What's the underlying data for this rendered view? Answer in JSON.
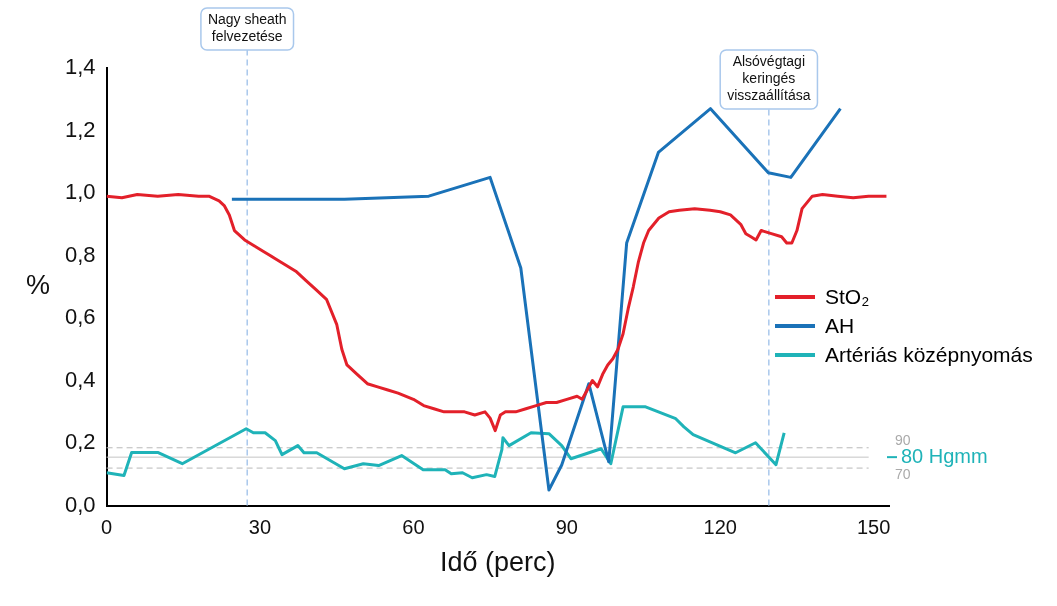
{
  "chart_data": {
    "type": "line",
    "xlabel": "Idő (perc)",
    "ylabel": "%",
    "xlim": [
      0,
      153
    ],
    "xticks": [
      0,
      30,
      60,
      90,
      120,
      150
    ],
    "ylim": [
      0,
      1.4
    ],
    "yticks": [
      {
        "value": 0,
        "label": "0,0"
      },
      {
        "value": 0.2,
        "label": "0,2"
      },
      {
        "value": 0.4,
        "label": "0,4"
      },
      {
        "value": 0.6,
        "label": "0,6"
      },
      {
        "value": 0.8,
        "label": "0,8"
      },
      {
        "value": 1,
        "label": "1,0"
      },
      {
        "value": 1.2,
        "label": "1,2"
      },
      {
        "value": 1.4,
        "label": "1,4"
      }
    ],
    "grid": false,
    "legend": "right",
    "marker": "none",
    "line_style": "solid",
    "series": [
      {
        "name": "StO₂",
        "color": "#e3202a",
        "x": [
          0,
          3,
          6,
          10,
          14,
          18,
          20,
          22,
          23,
          24,
          25,
          27,
          29,
          31,
          33,
          35,
          37,
          39,
          41,
          43,
          45,
          46,
          47,
          49,
          51,
          53,
          55,
          57,
          60,
          62,
          64,
          66,
          68,
          70,
          72,
          74,
          75,
          76,
          77,
          78,
          80,
          82,
          84,
          86,
          88,
          90,
          92,
          93,
          94,
          95,
          96,
          97,
          98,
          99,
          100,
          101,
          102,
          103,
          104,
          105,
          106,
          108,
          110,
          112,
          115,
          118,
          120,
          122,
          124,
          125,
          126,
          127,
          128,
          130,
          132,
          133,
          134,
          135,
          136,
          138,
          140,
          143,
          146,
          149,
          152.5
        ],
        "values": [
          0.99,
          0.985,
          0.995,
          0.99,
          0.995,
          0.99,
          0.99,
          0.975,
          0.96,
          0.93,
          0.88,
          0.85,
          0.83,
          0.81,
          0.79,
          0.77,
          0.75,
          0.72,
          0.69,
          0.66,
          0.58,
          0.5,
          0.45,
          0.42,
          0.39,
          0.38,
          0.37,
          0.36,
          0.34,
          0.32,
          0.31,
          0.3,
          0.3,
          0.3,
          0.29,
          0.3,
          0.28,
          0.24,
          0.29,
          0.3,
          0.3,
          0.31,
          0.32,
          0.33,
          0.33,
          0.34,
          0.35,
          0.34,
          0.37,
          0.4,
          0.38,
          0.42,
          0.45,
          0.47,
          0.5,
          0.55,
          0.63,
          0.7,
          0.78,
          0.84,
          0.88,
          0.92,
          0.94,
          0.945,
          0.95,
          0.945,
          0.94,
          0.93,
          0.9,
          0.87,
          0.86,
          0.85,
          0.88,
          0.87,
          0.86,
          0.84,
          0.84,
          0.88,
          0.95,
          0.99,
          0.995,
          0.99,
          0.985,
          0.99,
          0.99
        ]
      },
      {
        "name": "AH",
        "color": "#1a72b8",
        "x": [
          24.5,
          46.5,
          63,
          75,
          81,
          86.5,
          89,
          94.3,
          98.2,
          101.7,
          107.9,
          118.1,
          129.4,
          133.8,
          143.5
        ],
        "values": [
          0.98,
          0.98,
          0.99,
          1.05,
          0.76,
          0.05,
          0.13,
          0.39,
          0.14,
          0.84,
          1.13,
          1.27,
          1.065,
          1.05,
          1.27
        ]
      },
      {
        "name": "Artériás középnyomás",
        "color": "#1fb3b8",
        "x": [
          0,
          3.4,
          4.9,
          10,
          14.8,
          27.3,
          28.7,
          31,
          33,
          34.3,
          37.4,
          38.6,
          41.1,
          46.5,
          50.2,
          53.2,
          57.7,
          61.9,
          66.2,
          67.4,
          69.6,
          71.5,
          74.3,
          75.9,
          77.3,
          77.5,
          78.7,
          83,
          86.5,
          89,
          90.8,
          96.7,
          98.6,
          101,
          105.4,
          111.3,
          112.9,
          114.7,
          123,
          126.9,
          130.9,
          132.5
        ],
        "values": [
          0.105,
          0.096,
          0.17,
          0.17,
          0.134,
          0.246,
          0.233,
          0.233,
          0.208,
          0.163,
          0.192,
          0.169,
          0.169,
          0.118,
          0.134,
          0.128,
          0.16,
          0.115,
          0.115,
          0.102,
          0.105,
          0.089,
          0.099,
          0.093,
          0.179,
          0.217,
          0.192,
          0.233,
          0.23,
          0.192,
          0.15,
          0.182,
          0.134,
          0.316,
          0.316,
          0.278,
          0.252,
          0.227,
          0.169,
          0.201,
          0.131,
          0.233
        ]
      }
    ],
    "ref_lines": [
      {
        "axis": "x",
        "value": 27.5,
        "label": "Nagy sheath\nfelvezetése",
        "color": "#a9c8ec",
        "line_style": "dashed"
      },
      {
        "axis": "x",
        "value": 129.5,
        "label": "Alsóvégtagi\nkeringés\nvisszaállítása",
        "color": "#a9c8ec",
        "line_style": "dashed"
      },
      {
        "axis": "y",
        "value": 0.185,
        "color": "#b8b8b8",
        "line_style": "dashed"
      },
      {
        "axis": "y",
        "value": 0.155,
        "label": "80 Hgmm",
        "color": "#c4c4c4",
        "line_style": "solid"
      },
      {
        "axis": "y",
        "value": 0.12,
        "color": "#b8b8b8",
        "line_style": "dashed"
      }
    ],
    "annotations": [
      "90",
      "70"
    ]
  }
}
